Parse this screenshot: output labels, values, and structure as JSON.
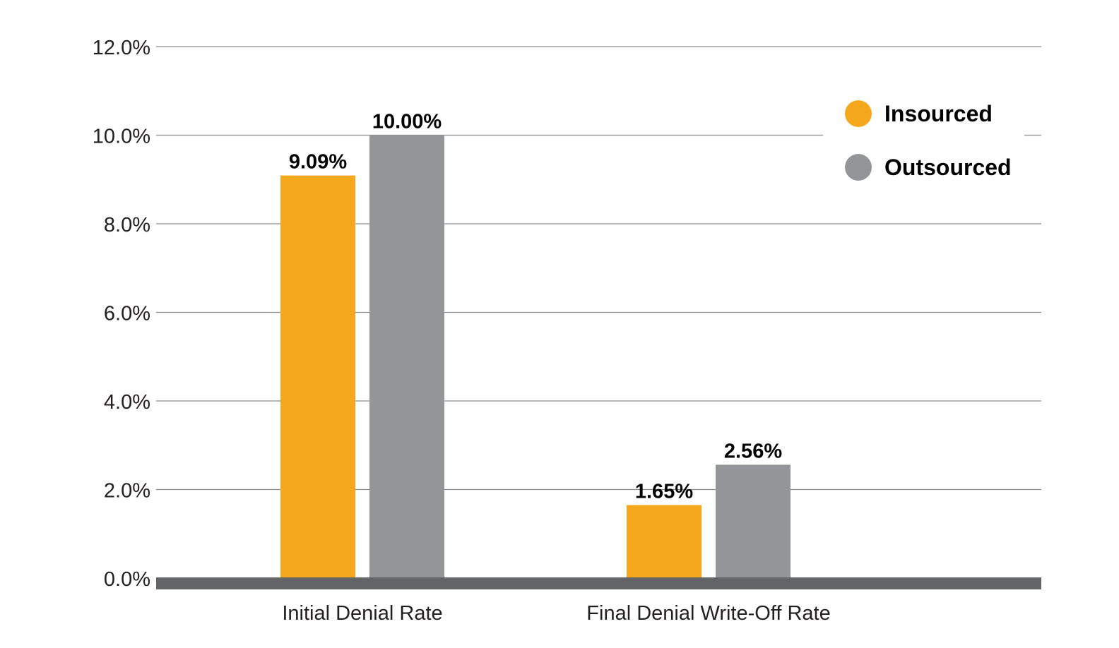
{
  "chart_data": {
    "type": "bar",
    "title": "",
    "xlabel": "",
    "ylabel": "",
    "ylim": [
      0,
      12
    ],
    "yticks": [
      0,
      2,
      4,
      6,
      8,
      10,
      12
    ],
    "ytick_labels": [
      "0.0%",
      "2.0%",
      "4.0%",
      "6.0%",
      "8.0%",
      "10.0%",
      "12.0%"
    ],
    "grid": true,
    "legend_position": "top-right",
    "categories": [
      "Initial Denial Rate",
      "Final Denial Write-Off Rate"
    ],
    "series": [
      {
        "name": "Insourced",
        "color": "#f5a81c",
        "values": [
          9.09,
          1.65
        ],
        "labels": [
          "9.09%",
          "1.65%"
        ]
      },
      {
        "name": "Outsourced",
        "color": "#939598",
        "values": [
          10.0,
          2.56
        ],
        "labels": [
          "10.00%",
          "2.56%"
        ]
      }
    ],
    "baseline_color": "#636466",
    "grid_color": "#8c8c8c"
  }
}
